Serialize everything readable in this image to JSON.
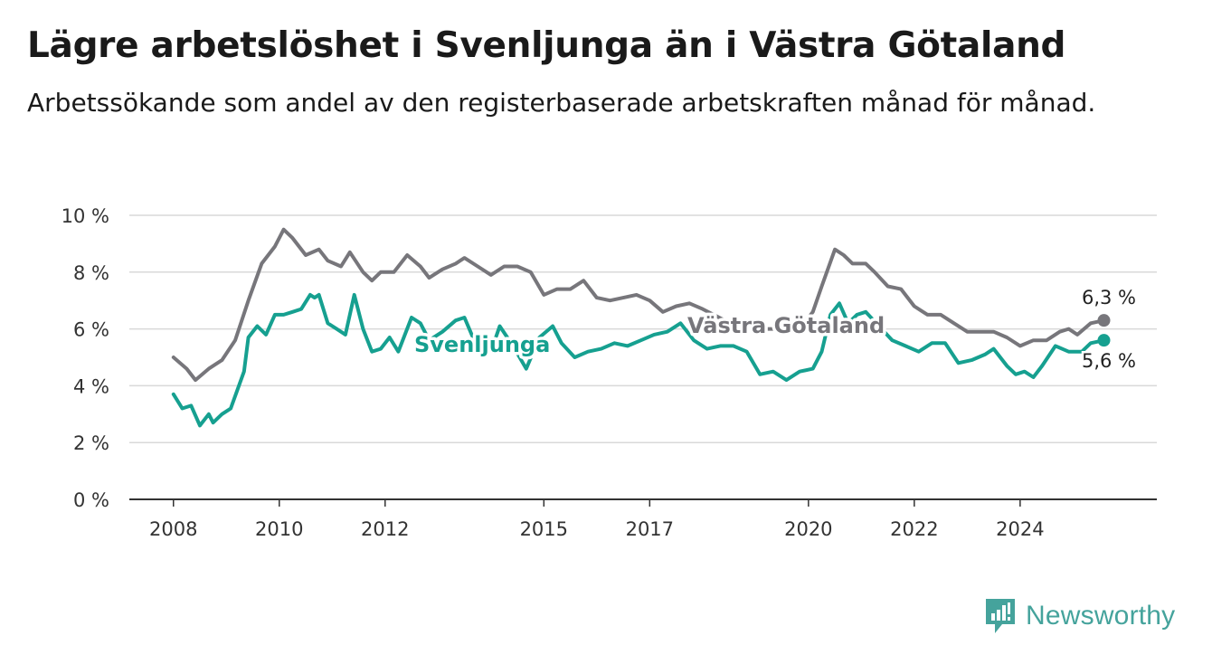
{
  "header": {
    "title": "Lägre arbetslöshet i Svenljunga än i Västra Götaland",
    "subtitle": "Arbetssökande som andel av den registerbaserade arbetskraften månad för månad."
  },
  "brand": {
    "name": "Newsworthy",
    "icon": "newsworthy-logo-icon",
    "color": "#45a39c"
  },
  "chart_data": {
    "type": "line",
    "title": "Lägre arbetslöshet i Svenljunga än i Västra Götaland",
    "subtitle": "Arbetssökande som andel av den registerbaserade arbetskraften månad för månad.",
    "x_ticks": [
      "2008",
      "2010",
      "2012",
      "2015",
      "2017",
      "2020",
      "2022",
      "2024"
    ],
    "y_ticks": [
      "0 %",
      "2 %",
      "4 %",
      "6 %",
      "8 %",
      "10 %"
    ],
    "ylim": [
      0,
      10
    ],
    "xlim": [
      "2007-03",
      "2026-08"
    ],
    "grid": true,
    "legend": "inline labels",
    "series": [
      {
        "name": "Västra Götaland",
        "color": "#77767b",
        "end_label": "6,3 %",
        "points": [
          [
            "2008-01",
            5.0
          ],
          [
            "2008-04",
            4.6
          ],
          [
            "2008-06",
            4.2
          ],
          [
            "2008-09",
            4.6
          ],
          [
            "2008-12",
            4.9
          ],
          [
            "2009-03",
            5.6
          ],
          [
            "2009-06",
            7.0
          ],
          [
            "2009-09",
            8.3
          ],
          [
            "2009-12",
            8.9
          ],
          [
            "2010-02",
            9.5
          ],
          [
            "2010-04",
            9.2
          ],
          [
            "2010-07",
            8.6
          ],
          [
            "2010-10",
            8.8
          ],
          [
            "2010-12",
            8.4
          ],
          [
            "2011-03",
            8.2
          ],
          [
            "2011-05",
            8.7
          ],
          [
            "2011-08",
            8.0
          ],
          [
            "2011-10",
            7.7
          ],
          [
            "2011-12",
            8.0
          ],
          [
            "2012-03",
            8.0
          ],
          [
            "2012-06",
            8.6
          ],
          [
            "2012-09",
            8.2
          ],
          [
            "2012-11",
            7.8
          ],
          [
            "2013-02",
            8.1
          ],
          [
            "2013-05",
            8.3
          ],
          [
            "2013-07",
            8.5
          ],
          [
            "2013-10",
            8.2
          ],
          [
            "2014-01",
            7.9
          ],
          [
            "2014-04",
            8.2
          ],
          [
            "2014-07",
            8.2
          ],
          [
            "2014-10",
            8.0
          ],
          [
            "2015-01",
            7.2
          ],
          [
            "2015-04",
            7.4
          ],
          [
            "2015-07",
            7.4
          ],
          [
            "2015-10",
            7.7
          ],
          [
            "2016-01",
            7.1
          ],
          [
            "2016-04",
            7.0
          ],
          [
            "2016-07",
            7.1
          ],
          [
            "2016-10",
            7.2
          ],
          [
            "2017-01",
            7.0
          ],
          [
            "2017-04",
            6.6
          ],
          [
            "2017-07",
            6.8
          ],
          [
            "2017-10",
            6.9
          ],
          [
            "2018-01",
            6.7
          ],
          [
            "2018-06",
            6.3
          ],
          [
            "2018-12",
            6.0
          ],
          [
            "2019-06",
            6.0
          ],
          [
            "2019-12",
            6.2
          ],
          [
            "2020-02",
            6.6
          ],
          [
            "2020-04",
            7.5
          ],
          [
            "2020-07",
            8.8
          ],
          [
            "2020-09",
            8.6
          ],
          [
            "2020-11",
            8.3
          ],
          [
            "2021-02",
            8.3
          ],
          [
            "2021-04",
            8.0
          ],
          [
            "2021-07",
            7.5
          ],
          [
            "2021-10",
            7.4
          ],
          [
            "2022-01",
            6.8
          ],
          [
            "2022-04",
            6.5
          ],
          [
            "2022-07",
            6.5
          ],
          [
            "2022-10",
            6.2
          ],
          [
            "2023-01",
            5.9
          ],
          [
            "2023-04",
            5.9
          ],
          [
            "2023-07",
            5.9
          ],
          [
            "2023-10",
            5.7
          ],
          [
            "2024-01",
            5.4
          ],
          [
            "2024-04",
            5.6
          ],
          [
            "2024-07",
            5.6
          ],
          [
            "2024-10",
            5.9
          ],
          [
            "2024-12",
            6.0
          ],
          [
            "2025-02",
            5.8
          ],
          [
            "2025-05",
            6.2
          ],
          [
            "2025-08",
            6.3
          ]
        ]
      },
      {
        "name": "Svenljunga",
        "color": "#16a090",
        "end_label": "5,6 %",
        "points": [
          [
            "2008-01",
            3.7
          ],
          [
            "2008-03",
            3.2
          ],
          [
            "2008-05",
            3.3
          ],
          [
            "2008-07",
            2.6
          ],
          [
            "2008-09",
            3.0
          ],
          [
            "2008-10",
            2.7
          ],
          [
            "2008-12",
            3.0
          ],
          [
            "2009-02",
            3.2
          ],
          [
            "2009-05",
            4.5
          ],
          [
            "2009-06",
            5.7
          ],
          [
            "2009-08",
            6.1
          ],
          [
            "2009-10",
            5.8
          ],
          [
            "2009-12",
            6.5
          ],
          [
            "2010-02",
            6.5
          ],
          [
            "2010-04",
            6.6
          ],
          [
            "2010-06",
            6.7
          ],
          [
            "2010-08",
            7.2
          ],
          [
            "2010-09",
            7.1
          ],
          [
            "2010-10",
            7.2
          ],
          [
            "2010-12",
            6.2
          ],
          [
            "2011-02",
            6.0
          ],
          [
            "2011-04",
            5.8
          ],
          [
            "2011-06",
            7.2
          ],
          [
            "2011-08",
            6.0
          ],
          [
            "2011-10",
            5.2
          ],
          [
            "2011-12",
            5.3
          ],
          [
            "2012-02",
            5.7
          ],
          [
            "2012-04",
            5.2
          ],
          [
            "2012-07",
            6.4
          ],
          [
            "2012-09",
            6.2
          ],
          [
            "2012-11",
            5.6
          ],
          [
            "2013-02",
            5.9
          ],
          [
            "2013-05",
            6.3
          ],
          [
            "2013-07",
            6.4
          ],
          [
            "2013-10",
            5.3
          ],
          [
            "2014-01",
            5.2
          ],
          [
            "2014-03",
            6.1
          ],
          [
            "2014-06",
            5.4
          ],
          [
            "2014-09",
            4.6
          ],
          [
            "2014-12",
            5.7
          ],
          [
            "2015-03",
            6.1
          ],
          [
            "2015-05",
            5.5
          ],
          [
            "2015-08",
            5.0
          ],
          [
            "2015-11",
            5.2
          ],
          [
            "2016-02",
            5.3
          ],
          [
            "2016-05",
            5.5
          ],
          [
            "2016-08",
            5.4
          ],
          [
            "2016-11",
            5.6
          ],
          [
            "2017-02",
            5.8
          ],
          [
            "2017-05",
            5.9
          ],
          [
            "2017-08",
            6.2
          ],
          [
            "2017-11",
            5.6
          ],
          [
            "2018-02",
            5.3
          ],
          [
            "2018-05",
            5.4
          ],
          [
            "2018-08",
            5.4
          ],
          [
            "2018-11",
            5.2
          ],
          [
            "2019-02",
            4.4
          ],
          [
            "2019-05",
            4.5
          ],
          [
            "2019-08",
            4.2
          ],
          [
            "2019-11",
            4.5
          ],
          [
            "2020-02",
            4.6
          ],
          [
            "2020-04",
            5.2
          ],
          [
            "2020-06",
            6.5
          ],
          [
            "2020-08",
            6.9
          ],
          [
            "2020-10",
            6.2
          ],
          [
            "2020-12",
            6.5
          ],
          [
            "2021-02",
            6.6
          ],
          [
            "2021-05",
            6.1
          ],
          [
            "2021-08",
            5.6
          ],
          [
            "2021-11",
            5.4
          ],
          [
            "2022-02",
            5.2
          ],
          [
            "2022-05",
            5.5
          ],
          [
            "2022-08",
            5.5
          ],
          [
            "2022-11",
            4.8
          ],
          [
            "2023-02",
            4.9
          ],
          [
            "2023-05",
            5.1
          ],
          [
            "2023-07",
            5.3
          ],
          [
            "2023-10",
            4.7
          ],
          [
            "2023-12",
            4.4
          ],
          [
            "2024-02",
            4.5
          ],
          [
            "2024-04",
            4.3
          ],
          [
            "2024-06",
            4.7
          ],
          [
            "2024-09",
            5.4
          ],
          [
            "2024-12",
            5.2
          ],
          [
            "2025-03",
            5.2
          ],
          [
            "2025-05",
            5.5
          ],
          [
            "2025-08",
            5.6
          ]
        ]
      }
    ]
  }
}
